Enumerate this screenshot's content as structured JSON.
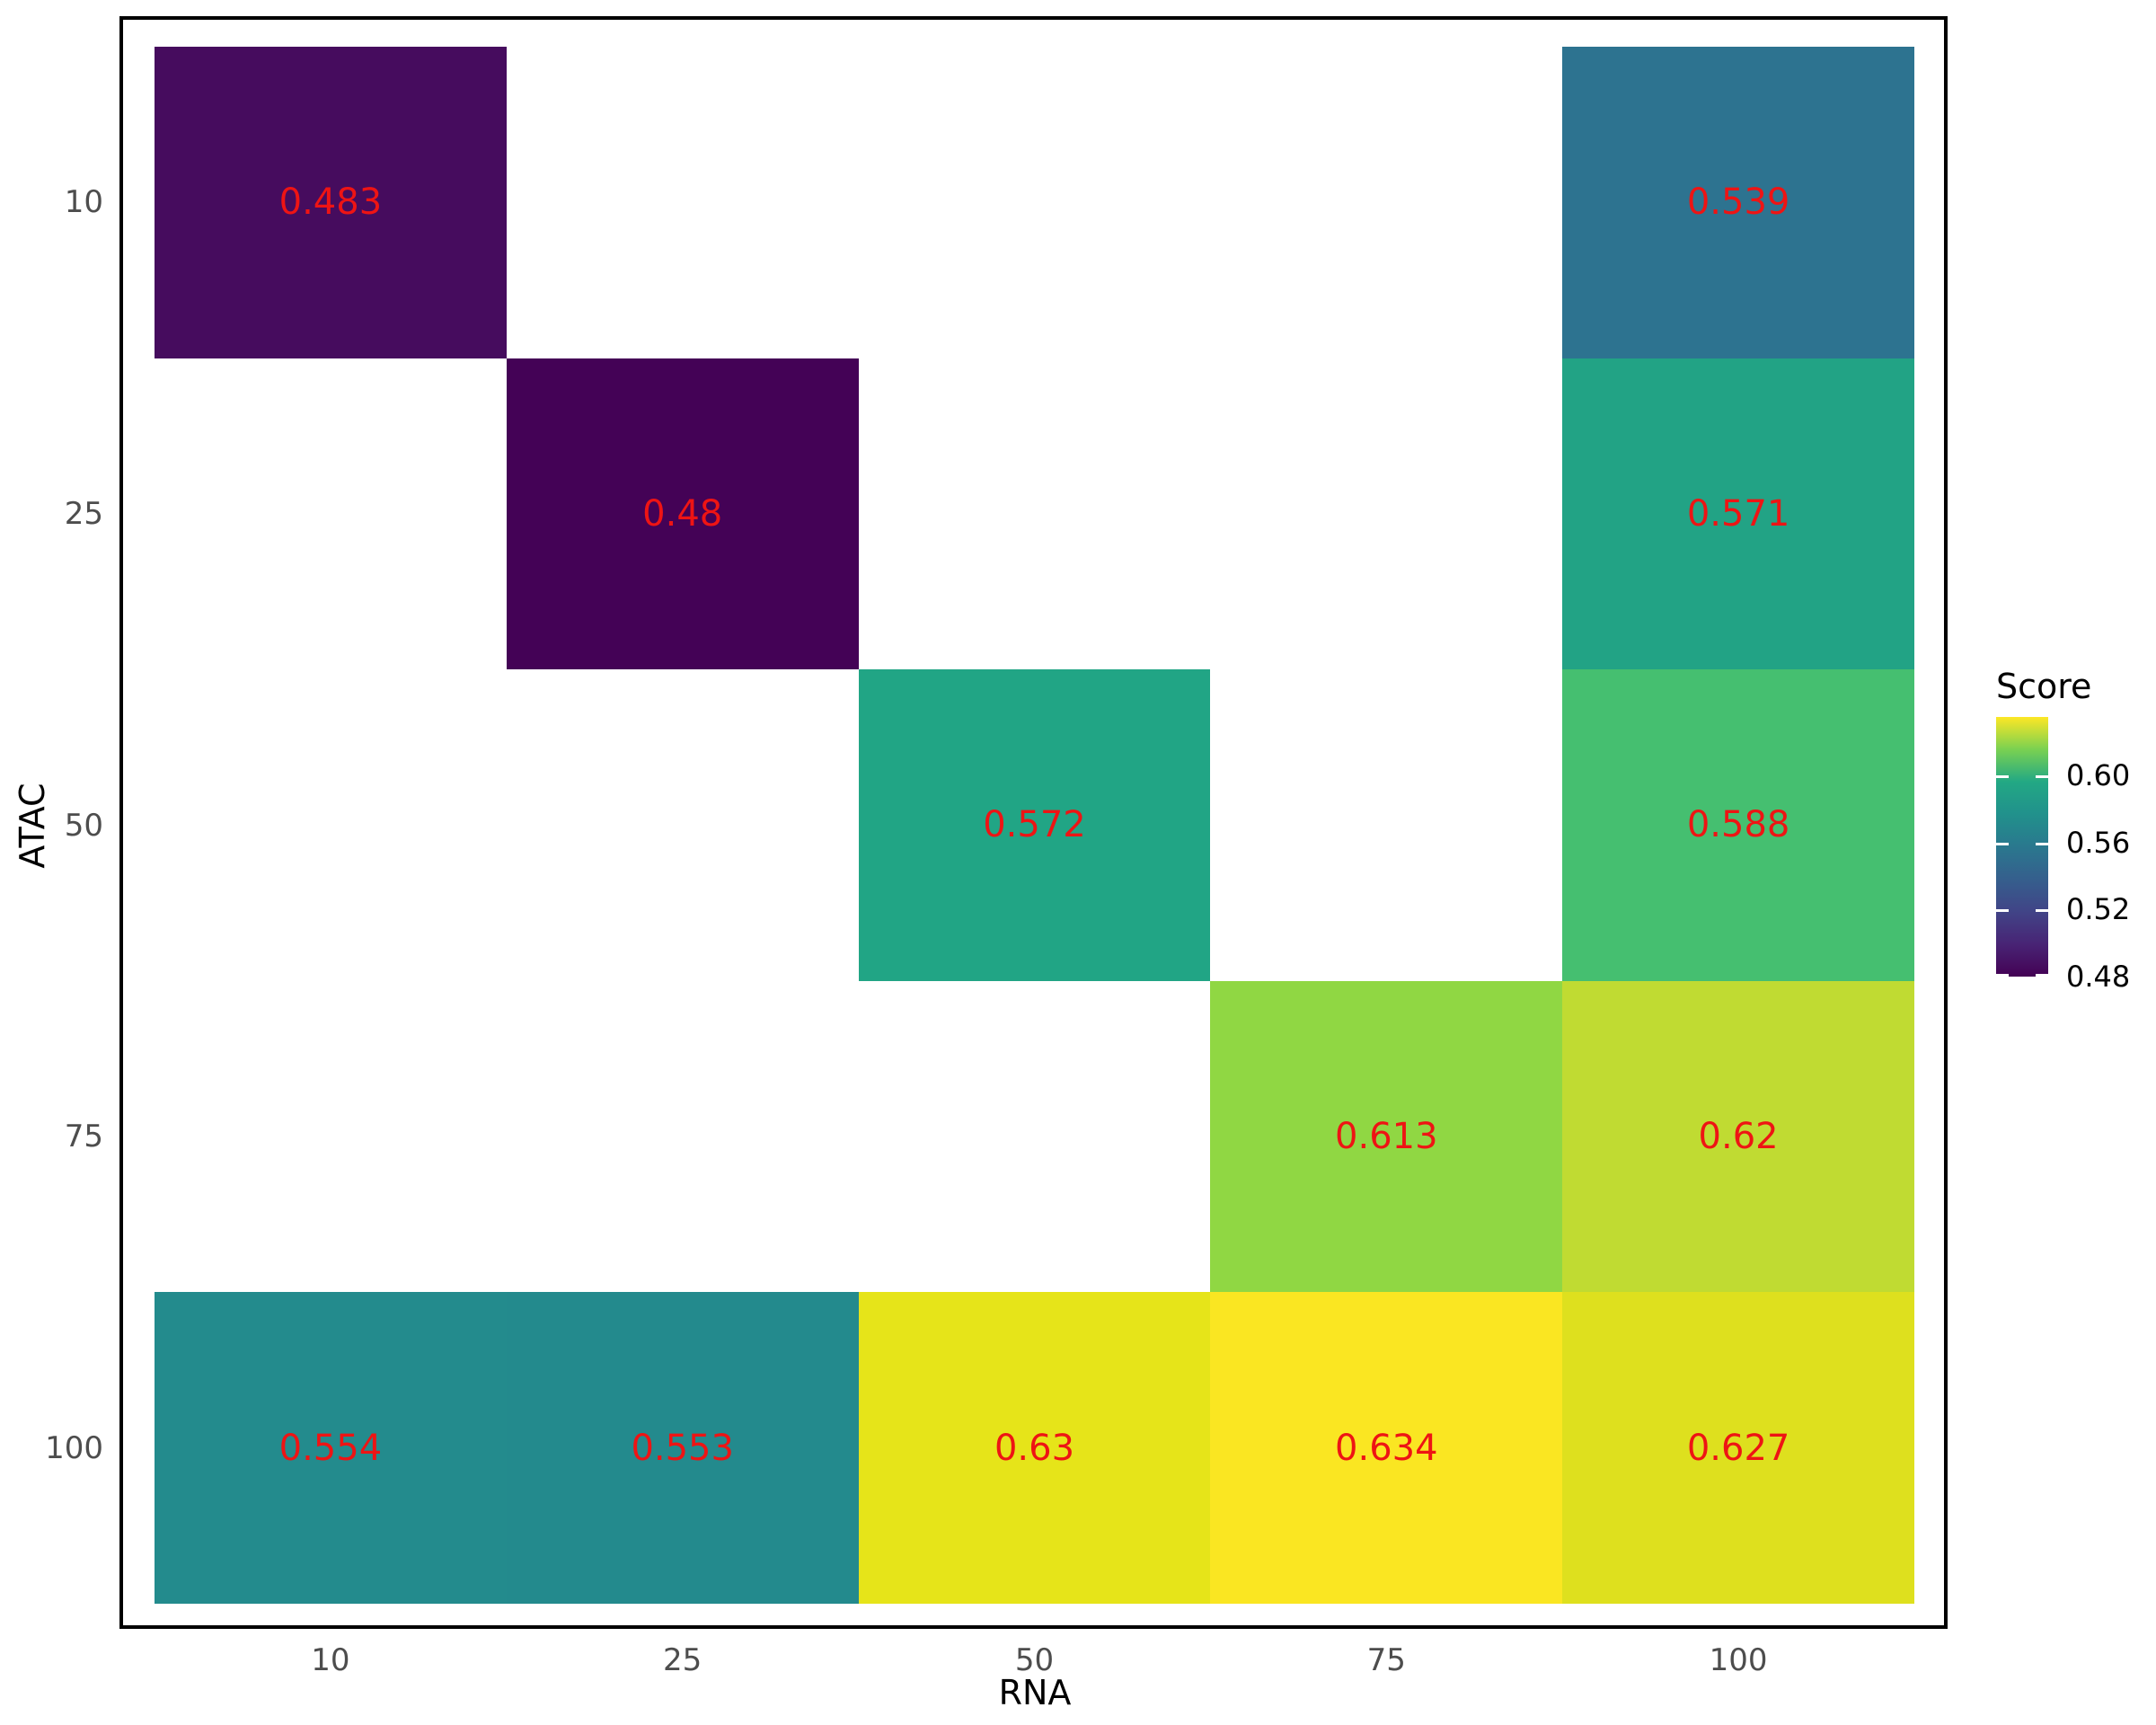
{
  "chart_data": {
    "type": "heatmap",
    "xlabel": "RNA",
    "ylabel": "ATAC",
    "x_categories": [
      "10",
      "25",
      "50",
      "75",
      "100"
    ],
    "y_categories": [
      "10",
      "25",
      "50",
      "75",
      "100"
    ],
    "cells": [
      {
        "x": "10",
        "y": "10",
        "value": 0.483,
        "label": "0.483",
        "color": "#460C5E"
      },
      {
        "x": "100",
        "y": "10",
        "value": 0.539,
        "label": "0.539",
        "color": "#2D7390"
      },
      {
        "x": "25",
        "y": "25",
        "value": 0.48,
        "label": "0.48",
        "color": "#440256"
      },
      {
        "x": "100",
        "y": "25",
        "value": 0.571,
        "label": "0.571",
        "color": "#22A385"
      },
      {
        "x": "50",
        "y": "50",
        "value": 0.572,
        "label": "0.572",
        "color": "#21A585"
      },
      {
        "x": "100",
        "y": "50",
        "value": 0.588,
        "label": "0.588",
        "color": "#45BF70"
      },
      {
        "x": "75",
        "y": "75",
        "value": 0.613,
        "label": "0.613",
        "color": "#90D743"
      },
      {
        "x": "100",
        "y": "75",
        "value": 0.62,
        "label": "0.62",
        "color": "#C0DB32"
      },
      {
        "x": "10",
        "y": "100",
        "value": 0.554,
        "label": "0.554",
        "color": "#238B8D"
      },
      {
        "x": "25",
        "y": "100",
        "value": 0.553,
        "label": "0.553",
        "color": "#238A8D"
      },
      {
        "x": "50",
        "y": "100",
        "value": 0.63,
        "label": "0.63",
        "color": "#E6E419"
      },
      {
        "x": "75",
        "y": "100",
        "value": 0.634,
        "label": "0.634",
        "color": "#FAE622"
      },
      {
        "x": "100",
        "y": "100",
        "value": 0.627,
        "label": "0.627",
        "color": "#DEE01E"
      }
    ],
    "legend": {
      "title": "Score",
      "tick_labels": [
        "0.60",
        "0.56",
        "0.52",
        "0.48"
      ],
      "tick_values": [
        0.6,
        0.56,
        0.52,
        0.48
      ],
      "range": [
        0.48,
        0.635
      ],
      "position": "right",
      "colormap": "viridis",
      "gradient_stops": [
        "#440154",
        "#482475",
        "#414487",
        "#355F8D",
        "#2A788E",
        "#21918C",
        "#22A884",
        "#7AD151",
        "#FDE725"
      ]
    },
    "grid": "off",
    "colors": {
      "background": "#FFFFFF",
      "panel_border": "#000000",
      "axis_tick_label": "#4D4D4D",
      "axis_title": "#000000",
      "value_label": "#EE1414"
    }
  }
}
